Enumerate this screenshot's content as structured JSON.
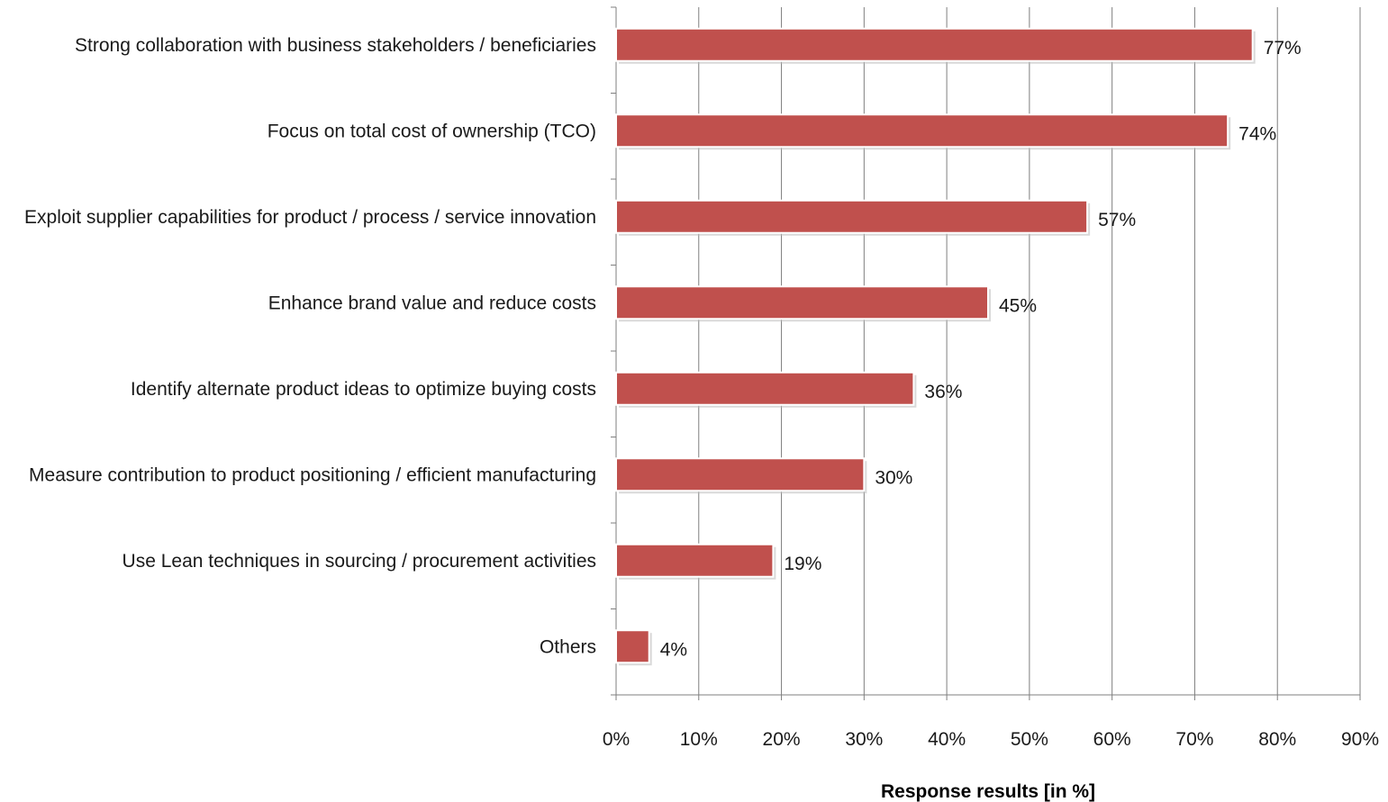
{
  "chart_data": {
    "type": "bar",
    "orientation": "horizontal",
    "categories": [
      "Strong collaboration with business stakeholders / beneficiaries",
      "Focus on total cost of ownership (TCO)",
      "Exploit supplier capabilities for product / process / service innovation",
      "Enhance brand value and reduce costs",
      "Identify alternate product ideas to optimize buying costs",
      "Measure contribution to product positioning / efficient manufacturing",
      "Use Lean techniques in sourcing / procurement activities",
      "Others"
    ],
    "values": [
      77,
      74,
      57,
      45,
      36,
      30,
      19,
      4
    ],
    "value_labels": [
      "77%",
      "74%",
      "57%",
      "45%",
      "36%",
      "30%",
      "19%",
      "4%"
    ],
    "xlabel": "Response results [in %]",
    "ylabel": "",
    "title": "",
    "xlim": [
      0,
      90
    ],
    "x_ticks": [
      0,
      10,
      20,
      30,
      40,
      50,
      60,
      70,
      80,
      90
    ],
    "x_tick_labels": [
      "0%",
      "10%",
      "20%",
      "30%",
      "40%",
      "50%",
      "60%",
      "70%",
      "80%",
      "90%"
    ],
    "grid": "vertical",
    "legend": "none",
    "colors": {
      "bar_fill": "#c0504d",
      "bar_edge": "#8c3836",
      "gridline": "#7f7f7f",
      "axis": "#7f7f7f",
      "text": "#1a1a1a"
    }
  }
}
